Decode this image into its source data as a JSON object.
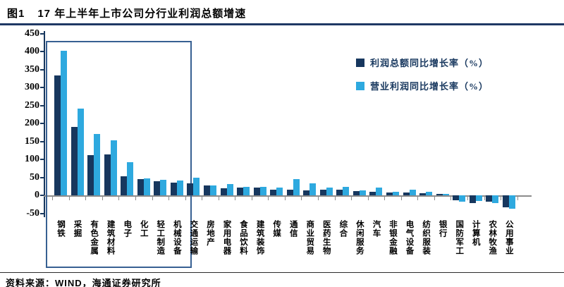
{
  "header": {
    "figure_label": "图1",
    "title": "17 年上半年上市公司分行业利润总额增速"
  },
  "footer": {
    "source": "资料来源：WIND，海通证券研究所"
  },
  "colors": {
    "series_profit_total": "#17375E",
    "series_operating_profit": "#2EA9DF",
    "title_rule": "#1F3864",
    "highlight_box": "#376092",
    "axis": "#8c8c8c"
  },
  "chart_data": {
    "type": "bar",
    "title": "17 年上半年上市公司分行业利润总额增速",
    "categories": [
      "钢铁",
      "采掘",
      "有色金属",
      "建筑材料",
      "电子",
      "化工",
      "轻工制造",
      "机械设备",
      "交通运输",
      "房地产",
      "家用电器",
      "食品饮料",
      "建筑装饰",
      "传媒",
      "通信",
      "商业贸易",
      "医药生物",
      "综合",
      "休闲服务",
      "汽车",
      "非银金融",
      "电气设备",
      "纺织服装",
      "银行",
      "国防军工",
      "计算机",
      "农林牧渔",
      "公用事业"
    ],
    "series": [
      {
        "name": "利润总额同比增长率（%）",
        "color": "#17375E",
        "values": [
          333,
          190,
          112,
          113,
          52,
          45,
          40,
          36,
          33,
          27,
          20,
          22,
          22,
          16,
          15,
          14,
          15,
          16,
          11,
          9,
          7,
          8,
          6,
          4,
          -13,
          -22,
          -17,
          -33
        ]
      },
      {
        "name": "营业利润同比增长率（%）",
        "color": "#2EA9DF",
        "values": [
          402,
          242,
          170,
          152,
          93,
          47,
          43,
          42,
          50,
          27,
          31,
          24,
          23,
          21,
          45,
          33,
          21,
          23,
          14,
          21,
          10,
          15,
          9,
          3,
          -17,
          -15,
          -21,
          -38
        ]
      }
    ],
    "xlabel": "",
    "ylabel": "",
    "ylim": [
      -50,
      450
    ],
    "ytick_step": 50,
    "grid": false,
    "legend_position": "top-right",
    "highlight_box": {
      "from": "钢铁",
      "to": "机械设备"
    }
  }
}
